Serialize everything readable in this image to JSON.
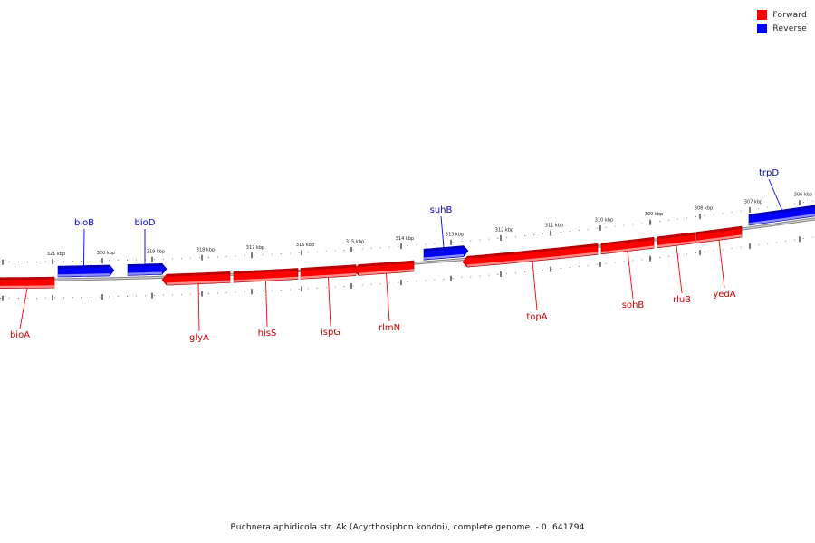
{
  "legend": {
    "forward": {
      "label": "Forward",
      "color": "#ff0000"
    },
    "reverse": {
      "label": "Reverse",
      "color": "#0000ff"
    }
  },
  "caption": "Buchnera aphidicola str. Ak (Acyrthosiphon kondoi), complete genome. - 0..641794",
  "ruler_labels": [
    "321 kbp",
    "320 kbp",
    "319 kbp",
    "318 kbp",
    "317 kbp",
    "316 kbp",
    "315 kbp",
    "314 kbp",
    "313 kbp",
    "312 kbp",
    "311 kbp",
    "310 kbp",
    "309 kbp",
    "308 kbp",
    "307 kbp",
    "306 kbp"
  ],
  "genes": [
    {
      "name": "bioA",
      "strand": "forward"
    },
    {
      "name": "bioB",
      "strand": "reverse"
    },
    {
      "name": "bioD",
      "strand": "reverse"
    },
    {
      "name": "glyA",
      "strand": "forward"
    },
    {
      "name": "hisS",
      "strand": "forward"
    },
    {
      "name": "ispG",
      "strand": "forward"
    },
    {
      "name": "rlmN",
      "strand": "forward"
    },
    {
      "name": "suhB",
      "strand": "reverse"
    },
    {
      "name": "topA",
      "strand": "forward"
    },
    {
      "name": "sohB",
      "strand": "forward"
    },
    {
      "name": "rluB",
      "strand": "forward"
    },
    {
      "name": "yedA",
      "strand": "forward"
    },
    {
      "name": "trpD",
      "strand": "reverse"
    }
  ]
}
